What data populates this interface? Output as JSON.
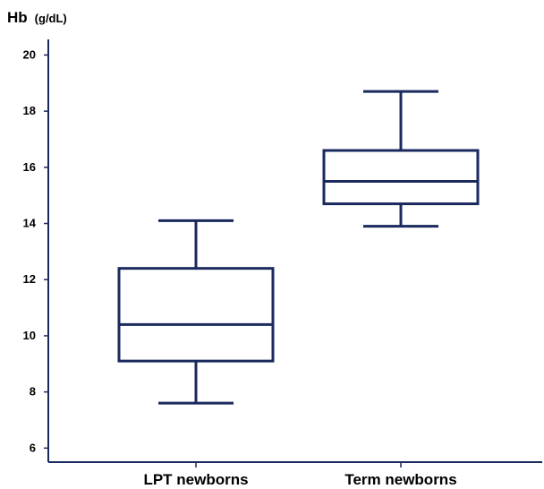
{
  "chart_data": {
    "type": "box",
    "ylabel": "Hb",
    "ylabel_unit": "(g/dL)",
    "ylim": [
      5.5,
      20.3
    ],
    "yticks": [
      6,
      8,
      10,
      12,
      14,
      16,
      18,
      20
    ],
    "ytick_labels": [
      "6",
      "8",
      "10",
      "12",
      "14",
      "16",
      "18",
      "20"
    ],
    "categories": [
      "LPT newborns",
      "Term newborns"
    ],
    "boxes": [
      {
        "category": "LPT newborns",
        "min": 7.6,
        "q1": 9.1,
        "median": 10.4,
        "q3": 12.4,
        "max": 14.1
      },
      {
        "category": "Term newborns",
        "min": 13.9,
        "q1": 14.7,
        "median": 15.5,
        "q3": 16.6,
        "max": 18.7
      }
    ],
    "colors": {
      "box": "#1a2a5e",
      "axis": "#1a2a5e"
    },
    "grid": false,
    "legend": "none"
  }
}
